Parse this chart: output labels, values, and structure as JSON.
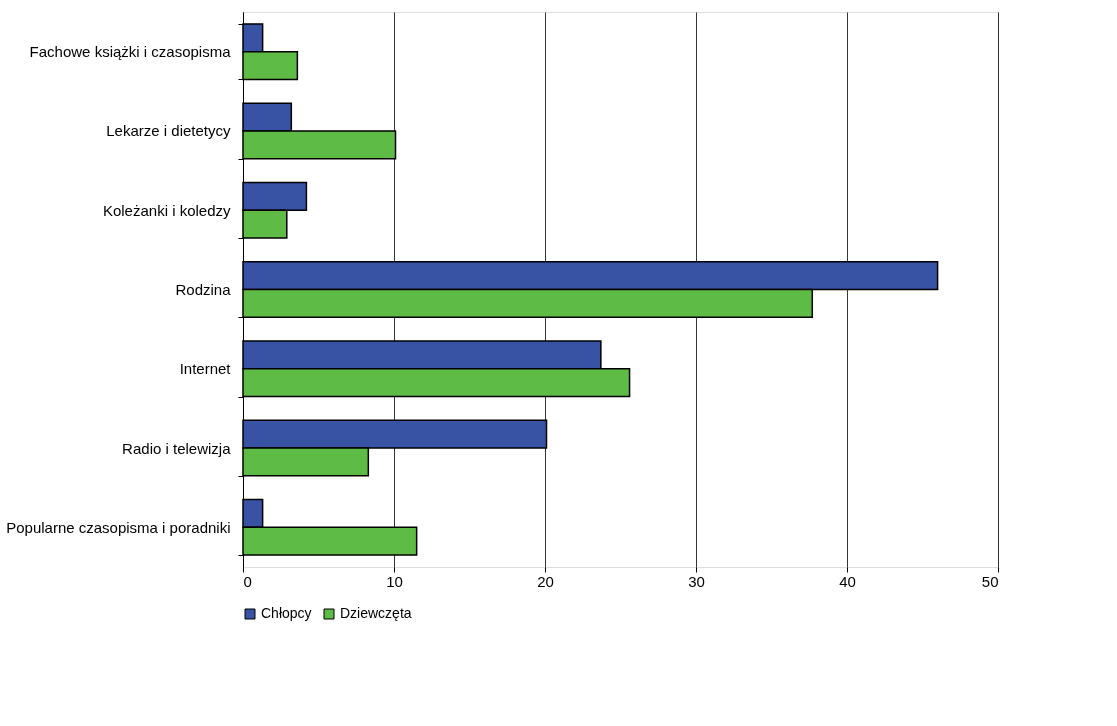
{
  "chart_data": {
    "type": "bar",
    "orientation": "horizontal",
    "categories": [
      "Fachowe książki i czasopisma",
      "Lekarze i dietetycy",
      "Koleżanki i koledzy",
      "Rodzina",
      "Internet",
      "Radio i telewizja",
      "Popularne czasopisma i poradniki"
    ],
    "series": [
      {
        "name": "Chłopcy",
        "color": "#3953a4",
        "values": [
          1.3,
          3.2,
          4.2,
          46.0,
          23.7,
          20.1,
          1.3
        ]
      },
      {
        "name": "Dziewczęta",
        "color": "#5dbb46",
        "values": [
          3.6,
          10.1,
          2.9,
          37.7,
          25.6,
          8.3,
          11.5
        ]
      }
    ],
    "xlim": [
      0,
      50
    ],
    "xticks": [
      0,
      10,
      20,
      30,
      40,
      50
    ],
    "grid": "x",
    "legend": "bottom"
  }
}
